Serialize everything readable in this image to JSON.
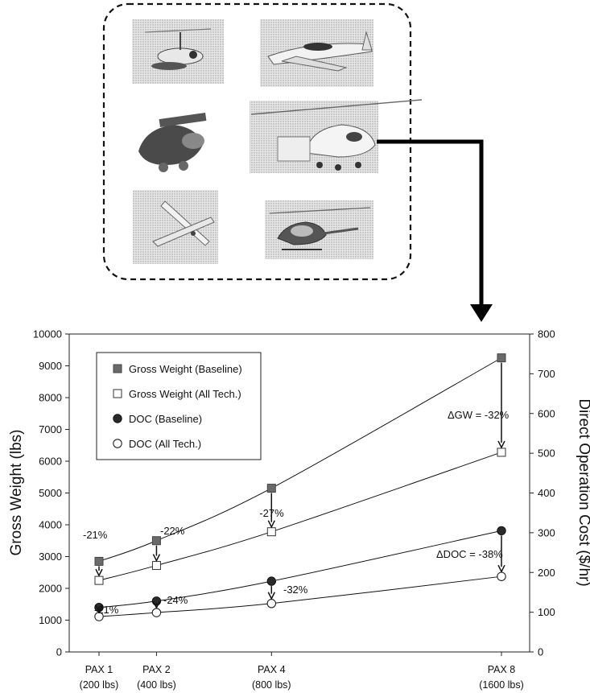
{
  "images": [
    {
      "name": "gyroplane-photo"
    },
    {
      "name": "light-airplane-photo"
    },
    {
      "name": "ducted-fan-vehicle-render"
    },
    {
      "name": "helicopter-tiltwing-photo"
    },
    {
      "name": "small-jet-photo"
    },
    {
      "name": "small-helicopter-photo"
    }
  ],
  "chart_data": {
    "type": "line",
    "categories": [
      "PAX 1\n(200 lbs)",
      "PAX 2\n(400 lbs)",
      "PAX 4\n(800 lbs)",
      "PAX 8\n(1600 lbs)"
    ],
    "x_payload_lbs": [
      200,
      400,
      800,
      1600
    ],
    "y_left": {
      "label": "Gross Weight (lbs)",
      "range": [
        0,
        10000
      ],
      "ticks": [
        0,
        1000,
        2000,
        3000,
        4000,
        5000,
        6000,
        7000,
        8000,
        9000,
        10000
      ]
    },
    "y_right": {
      "label": "Direct Operation Cost ($/hr)",
      "range": [
        0,
        800
      ],
      "ticks": [
        0,
        100,
        200,
        300,
        400,
        500,
        600,
        700,
        800
      ]
    },
    "series": [
      {
        "name": "Gross Weight (Baseline)",
        "axis": "left",
        "marker": "filled-square",
        "values": [
          2850,
          3500,
          5150,
          9250
        ]
      },
      {
        "name": "Gross Weight (All Tech.)",
        "axis": "left",
        "marker": "open-square",
        "values": [
          2250,
          2720,
          3780,
          6280
        ]
      },
      {
        "name": "DOC (Baseline)",
        "axis": "right",
        "marker": "filled-circle",
        "values": [
          112,
          128,
          178,
          305
        ]
      },
      {
        "name": "DOC (All Tech.)",
        "axis": "right",
        "marker": "open-circle",
        "values": [
          89,
          99,
          122,
          190
        ]
      }
    ],
    "annotations": [
      {
        "text": "-21%"
      },
      {
        "text": "-22%"
      },
      {
        "text": "-27%"
      },
      {
        "text": "ΔGW = -32%"
      },
      {
        "text": "-21%"
      },
      {
        "text": "-24%"
      },
      {
        "text": "-32%"
      },
      {
        "text": "ΔDOC = -38%"
      }
    ],
    "legend_position": "top-left",
    "grid": false
  }
}
